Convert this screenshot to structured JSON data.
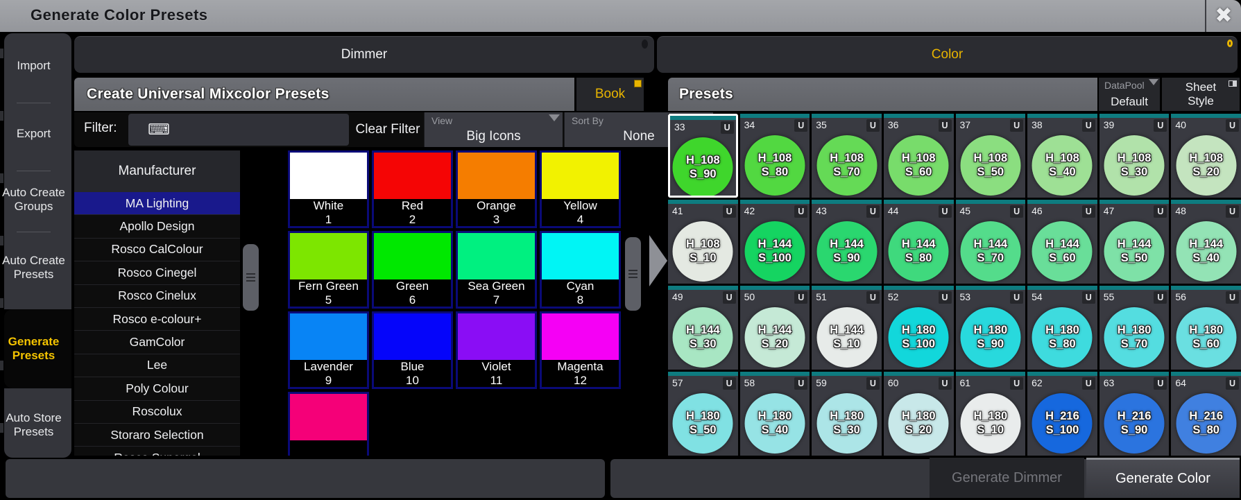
{
  "window": {
    "title": "Generate Color Presets"
  },
  "icons": {
    "close": "✖",
    "keyboard": "⌨",
    "dropdown_arrow": "▼"
  },
  "sidebar": {
    "import": "Import",
    "export": "Export",
    "auto_create_groups": "Auto Create Groups",
    "auto_create_presets": "Auto Create Presets",
    "generate_presets": "Generate Presets",
    "auto_store_presets": "Auto Store Presets",
    "active_item": "Generate Presets",
    "active_color": "#f5c400"
  },
  "tabs": {
    "dimmer": "Dimmer",
    "color": "Color",
    "selected": "Color",
    "selected_color": "#e8b400"
  },
  "left_panel": {
    "title": "Create Universal Mixcolor Presets",
    "book_button": "Book",
    "filter_label": "Filter:",
    "filter_value": "",
    "clear_filter": "Clear Filter",
    "view_label": "View",
    "view_value": "Big Icons",
    "sort_label": "Sort By",
    "sort_value": "None",
    "manufacturer_header": "Manufacturer",
    "selected_manufacturer": "MA Lighting",
    "manufacturers": [
      "MA Lighting",
      "Apollo Design",
      "Rosco CalColour",
      "Rosco Cinegel",
      "Rosco Cinelux",
      "Rosco e-colour+",
      "GamColor",
      "Lee",
      "Poly Colour",
      "Roscolux",
      "Storaro Selection",
      "Rosco Supergel"
    ],
    "swatches": [
      {
        "name": "White",
        "num": "1",
        "color": "#ffffff"
      },
      {
        "name": "Red",
        "num": "2",
        "color": "#f50505"
      },
      {
        "name": "Orange",
        "num": "3",
        "color": "#f57d00"
      },
      {
        "name": "Yellow",
        "num": "4",
        "color": "#f2f200"
      },
      {
        "name": "Fern Green",
        "num": "5",
        "color": "#7de600"
      },
      {
        "name": "Green",
        "num": "6",
        "color": "#00e800"
      },
      {
        "name": "Sea Green",
        "num": "7",
        "color": "#00f080"
      },
      {
        "name": "Cyan",
        "num": "8",
        "color": "#00f5f5"
      },
      {
        "name": "Lavender",
        "num": "9",
        "color": "#0884f5"
      },
      {
        "name": "Blue",
        "num": "10",
        "color": "#0505fa"
      },
      {
        "name": "Violet",
        "num": "11",
        "color": "#8a0df5"
      },
      {
        "name": "Magenta",
        "num": "12",
        "color": "#f500f5"
      },
      {
        "name": "",
        "num": "",
        "color": "#f50078"
      }
    ]
  },
  "right_panel": {
    "title": "Presets",
    "datapool_label": "DataPool",
    "datapool_value": "Default",
    "sheet_style_line1": "Sheet",
    "sheet_style_line2": "Style",
    "badge": "U",
    "strip_color": "#0e7c80",
    "selected_preset": 33,
    "presets": [
      {
        "num": 33,
        "line1": "H_108",
        "line2": "S_90",
        "color": "#3fd62c",
        "selected": true
      },
      {
        "num": 34,
        "line1": "H_108",
        "line2": "S_80",
        "color": "#52d841"
      },
      {
        "num": 35,
        "line1": "H_108",
        "line2": "S_70",
        "color": "#65da56"
      },
      {
        "num": 36,
        "line1": "H_108",
        "line2": "S_60",
        "color": "#78dc6b"
      },
      {
        "num": 37,
        "line1": "H_108",
        "line2": "S_50",
        "color": "#8bde80"
      },
      {
        "num": 38,
        "line1": "H_108",
        "line2": "S_40",
        "color": "#9ee095"
      },
      {
        "num": 39,
        "line1": "H_108",
        "line2": "S_30",
        "color": "#b1e2aa"
      },
      {
        "num": 40,
        "line1": "H_108",
        "line2": "S_20",
        "color": "#c4e4bf"
      },
      {
        "num": 41,
        "line1": "H_108",
        "line2": "S_10",
        "color": "#e4e9e2"
      },
      {
        "num": 42,
        "line1": "H_144",
        "line2": "S_100",
        "color": "#15d461"
      },
      {
        "num": 43,
        "line1": "H_144",
        "line2": "S_90",
        "color": "#2ad76f"
      },
      {
        "num": 44,
        "line1": "H_144",
        "line2": "S_80",
        "color": "#3fd97d"
      },
      {
        "num": 45,
        "line1": "H_144",
        "line2": "S_70",
        "color": "#54dc8b"
      },
      {
        "num": 46,
        "line1": "H_144",
        "line2": "S_60",
        "color": "#69de99"
      },
      {
        "num": 47,
        "line1": "H_144",
        "line2": "S_50",
        "color": "#7ee1a7"
      },
      {
        "num": 48,
        "line1": "H_144",
        "line2": "S_40",
        "color": "#93e3b5"
      },
      {
        "num": 49,
        "line1": "H_144",
        "line2": "S_30",
        "color": "#a8e6c3"
      },
      {
        "num": 50,
        "line1": "H_144",
        "line2": "S_20",
        "color": "#c5e9d6"
      },
      {
        "num": 51,
        "line1": "H_144",
        "line2": "S_10",
        "color": "#e7ebe9"
      },
      {
        "num": 52,
        "line1": "H_180",
        "line2": "S_100",
        "color": "#12d7db"
      },
      {
        "num": 53,
        "line1": "H_180",
        "line2": "S_90",
        "color": "#28d9dd"
      },
      {
        "num": 54,
        "line1": "H_180",
        "line2": "S_80",
        "color": "#3edbde"
      },
      {
        "num": 55,
        "line1": "H_180",
        "line2": "S_70",
        "color": "#54dde0"
      },
      {
        "num": 56,
        "line1": "H_180",
        "line2": "S_60",
        "color": "#6adfe1"
      },
      {
        "num": 57,
        "line1": "H_180",
        "line2": "S_50",
        "color": "#80e1e3"
      },
      {
        "num": 58,
        "line1": "H_180",
        "line2": "S_40",
        "color": "#96e3e5"
      },
      {
        "num": 59,
        "line1": "H_180",
        "line2": "S_30",
        "color": "#ace5e7"
      },
      {
        "num": 60,
        "line1": "H_180",
        "line2": "S_20",
        "color": "#c8e8e9"
      },
      {
        "num": 61,
        "line1": "H_180",
        "line2": "S_10",
        "color": "#e9ecec"
      },
      {
        "num": 62,
        "line1": "H_216",
        "line2": "S_100",
        "color": "#1668de"
      },
      {
        "num": 63,
        "line1": "H_216",
        "line2": "S_90",
        "color": "#2b74df"
      },
      {
        "num": 64,
        "line1": "H_216",
        "line2": "S_80",
        "color": "#4080e0"
      }
    ]
  },
  "footer": {
    "generate_dimmer": "Generate Dimmer",
    "generate_color": "Generate Color"
  }
}
